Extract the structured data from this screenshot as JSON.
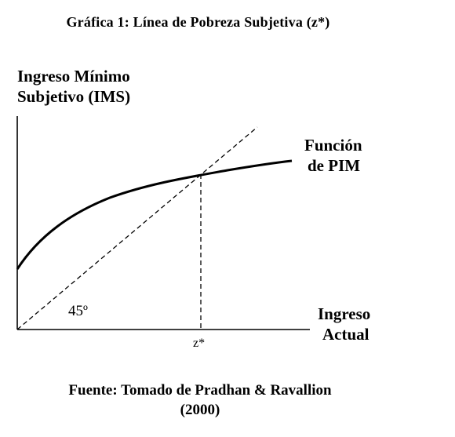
{
  "figure": {
    "title": "Gráfica 1: Línea de Pobreza Subjetiva (z*)"
  },
  "axes": {
    "y_label_line1": "Ingreso Mínimo",
    "y_label_line2": "Subjetivo (IMS)",
    "x_label_line1": "Ingreso",
    "x_label_line2": "Actual",
    "x_marker": "z*"
  },
  "curves": {
    "pim_label_line1": "Función",
    "pim_label_line2": "de PIM",
    "diagonal_label": "45º"
  },
  "source": {
    "line1": "Fuente: Tomado de Pradhan & Ravallion",
    "line2": "(2000)"
  }
}
